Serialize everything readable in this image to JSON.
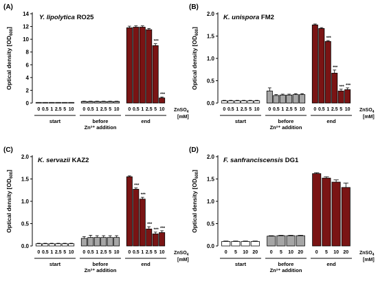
{
  "colors": {
    "start": "#ffffff",
    "before": "#a6a6a6",
    "end": "#7a1414",
    "axis": "#000000",
    "error": "#000000"
  },
  "chart_data": [
    {
      "type": "bar",
      "panel_label": "(A)",
      "species": "Y. lipolytica",
      "strain": "RO25",
      "ylabel": "Optical density [OD",
      "ylabel_sub": "600",
      "ylabel_end": "]",
      "ylim": [
        0,
        14
      ],
      "yticks": [
        "0",
        "2",
        "4",
        "6",
        "8",
        "10",
        "12",
        "14"
      ],
      "ytick_values": [
        0,
        2,
        4,
        6,
        8,
        10,
        12,
        14
      ],
      "categories": [
        "0",
        "0.5",
        "1",
        "2.5",
        "5",
        "10"
      ],
      "conc_label": "ZnSO",
      "conc_label_sub": "4",
      "conc_unit": "[mM]",
      "groups": [
        {
          "label": [
            "start"
          ],
          "key": "start",
          "values": [
            0.05,
            0.05,
            0.05,
            0.05,
            0.05,
            0.05
          ],
          "errors": [
            0.02,
            0.02,
            0.02,
            0.02,
            0.02,
            0.02
          ],
          "sig": [
            "",
            "",
            "",
            "",
            "",
            ""
          ]
        },
        {
          "label": [
            "before",
            "Zn²⁺ addition"
          ],
          "key": "before",
          "values": [
            0.25,
            0.25,
            0.25,
            0.25,
            0.25,
            0.25
          ],
          "errors": [
            0.05,
            0.05,
            0.05,
            0.05,
            0.05,
            0.05
          ],
          "sig": [
            "",
            "",
            "",
            "",
            "",
            ""
          ]
        },
        {
          "label": [
            "end"
          ],
          "key": "end",
          "values": [
            11.8,
            11.9,
            11.9,
            11.5,
            9.0,
            0.8
          ],
          "errors": [
            0.25,
            0.2,
            0.2,
            0.2,
            0.3,
            0.15
          ],
          "sig": [
            "",
            "",
            "",
            "",
            "***",
            "***"
          ]
        }
      ]
    },
    {
      "type": "bar",
      "panel_label": "(B)",
      "species": "K. unispora",
      "strain": "FM2",
      "ylabel": "Optical density [OD",
      "ylabel_sub": "600",
      "ylabel_end": "]",
      "ylim": [
        0,
        2.0
      ],
      "yticks": [
        "0.0",
        "0.5",
        "1.0",
        "1.5",
        "2.0"
      ],
      "ytick_values": [
        0,
        0.5,
        1.0,
        1.5,
        2.0
      ],
      "categories": [
        "0",
        "0.5",
        "1",
        "2.5",
        "5",
        "10"
      ],
      "conc_label": "ZnSO",
      "conc_label_sub": "4",
      "conc_unit": "[mM]",
      "groups": [
        {
          "label": [
            "start"
          ],
          "key": "start",
          "values": [
            0.05,
            0.05,
            0.05,
            0.05,
            0.05,
            0.05
          ],
          "errors": [
            0.01,
            0.01,
            0.01,
            0.01,
            0.01,
            0.01
          ],
          "sig": [
            "",
            "",
            "",
            "",
            "",
            ""
          ]
        },
        {
          "label": [
            "before",
            "Zn²⁺ addition"
          ],
          "key": "before",
          "values": [
            0.27,
            0.17,
            0.18,
            0.18,
            0.19,
            0.19
          ],
          "errors": [
            0.07,
            0.02,
            0.02,
            0.02,
            0.02,
            0.02
          ],
          "sig": [
            "",
            "",
            "",
            "",
            "",
            ""
          ]
        },
        {
          "label": [
            "end"
          ],
          "key": "end",
          "values": [
            1.75,
            1.67,
            1.38,
            0.67,
            0.27,
            0.3
          ],
          "errors": [
            0.02,
            0.02,
            0.02,
            0.07,
            0.04,
            0.04
          ],
          "sig": [
            "",
            "",
            "***",
            "***",
            "***",
            "***"
          ]
        }
      ]
    },
    {
      "type": "bar",
      "panel_label": "(C)",
      "species": "K. servazii",
      "strain": "KAZ2",
      "ylabel": "Optical density [OD",
      "ylabel_sub": "600",
      "ylabel_end": "]",
      "ylim": [
        0,
        2.0
      ],
      "yticks": [
        "0.0",
        "0.5",
        "1.0",
        "1.5",
        "2.0"
      ],
      "ytick_values": [
        0,
        0.5,
        1.0,
        1.5,
        2.0
      ],
      "categories": [
        "0",
        "0.5",
        "1",
        "2.5",
        "5",
        "10"
      ],
      "conc_label": "ZnSO",
      "conc_label_sub": "4",
      "conc_unit": "[mM]",
      "groups": [
        {
          "label": [
            "start"
          ],
          "key": "start",
          "values": [
            0.05,
            0.05,
            0.05,
            0.05,
            0.05,
            0.05
          ],
          "errors": [
            0.01,
            0.01,
            0.01,
            0.01,
            0.01,
            0.01
          ],
          "sig": [
            "",
            "",
            "",
            "",
            "",
            ""
          ]
        },
        {
          "label": [
            "before",
            "Zn²⁺ addition"
          ],
          "key": "before",
          "values": [
            0.17,
            0.19,
            0.19,
            0.19,
            0.19,
            0.19
          ],
          "errors": [
            0.04,
            0.05,
            0.04,
            0.04,
            0.04,
            0.04
          ],
          "sig": [
            "",
            "",
            "",
            "",
            "",
            ""
          ]
        },
        {
          "label": [
            "end"
          ],
          "key": "end",
          "values": [
            1.55,
            1.27,
            1.05,
            0.38,
            0.27,
            0.3
          ],
          "errors": [
            0.02,
            0.03,
            0.04,
            0.05,
            0.04,
            0.04
          ],
          "sig": [
            "",
            "***",
            "***",
            "***",
            "***",
            "***"
          ]
        }
      ]
    },
    {
      "type": "bar",
      "panel_label": "(D)",
      "species": "F. sanfranciscensis",
      "strain": "DG1",
      "ylabel": "Optical density [OD",
      "ylabel_sub": "600",
      "ylabel_end": "]",
      "ylim": [
        0,
        2.0
      ],
      "yticks": [
        "0.0",
        "0.5",
        "1.0",
        "1.5",
        "2.0"
      ],
      "ytick_values": [
        0,
        0.5,
        1.0,
        1.5,
        2.0
      ],
      "categories": [
        "0",
        "5",
        "10",
        "20"
      ],
      "conc_label": "ZnSO",
      "conc_label_sub": "4",
      "conc_unit": "[mM]",
      "groups": [
        {
          "label": [
            "start"
          ],
          "key": "start",
          "values": [
            0.1,
            0.1,
            0.1,
            0.1
          ],
          "errors": [
            0.01,
            0.01,
            0.01,
            0.01
          ],
          "sig": [
            "",
            "",
            "",
            ""
          ]
        },
        {
          "label": [
            "before",
            "Zn²⁺ addition"
          ],
          "key": "before",
          "values": [
            0.22,
            0.23,
            0.23,
            0.23
          ],
          "errors": [
            0.01,
            0.01,
            0.01,
            0.01
          ],
          "sig": [
            "",
            "",
            "",
            ""
          ]
        },
        {
          "label": [
            "end"
          ],
          "key": "end",
          "values": [
            1.62,
            1.52,
            1.43,
            1.31
          ],
          "errors": [
            0.02,
            0.03,
            0.05,
            0.1
          ],
          "sig": [
            "",
            "",
            "",
            ""
          ]
        }
      ]
    }
  ]
}
